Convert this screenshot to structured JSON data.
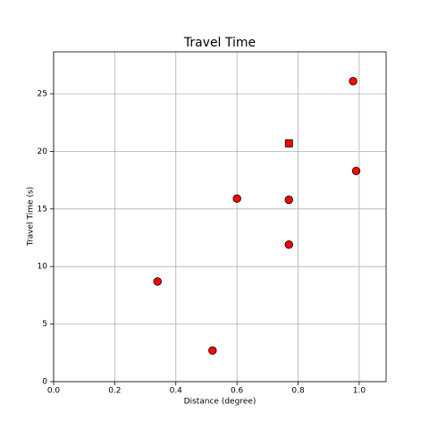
{
  "chart_data": {
    "type": "scatter",
    "title": "Travel Time",
    "x_label": "Distance (degree)",
    "y_label": "Travel Time (s)",
    "series": [
      {
        "marker": "circle",
        "color": "#ff0000",
        "x": [
          0.34,
          0.52,
          0.6,
          0.77,
          0.77,
          0.98,
          0.99
        ],
        "values": [
          8.7,
          2.7,
          15.9,
          15.8,
          11.9,
          26.1,
          18.3
        ]
      },
      {
        "marker": "square",
        "color": "#ff0000",
        "x": [
          0.77
        ],
        "values": [
          20.7
        ]
      }
    ],
    "xlim": [
      0,
      1.088
    ],
    "ylim": [
      0,
      28.65
    ],
    "xticks": [
      {
        "value": 0,
        "label": "0.0"
      },
      0.2,
      0.4,
      0.6,
      0.8,
      {
        "value": 1,
        "label": "1.0"
      }
    ],
    "yticks": [
      0,
      5,
      10,
      15,
      20,
      25
    ],
    "grid": true
  }
}
